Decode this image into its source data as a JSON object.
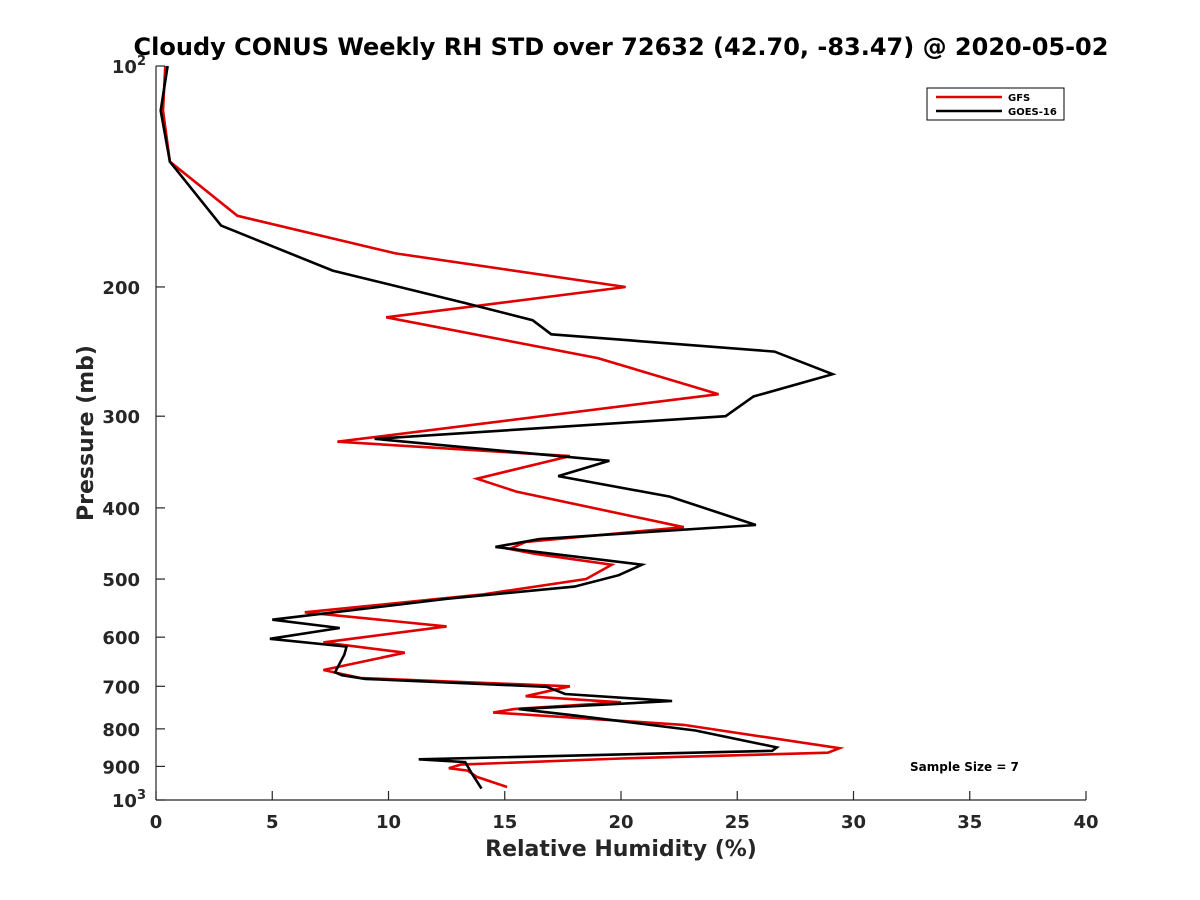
{
  "chart_data": {
    "type": "line",
    "title": "Cloudy CONUS Weekly RH STD over 72632 (42.70, -83.47) @ 2020-05-02",
    "xlabel": "Relative Humidity (%)",
    "ylabel": "Pressure (mb)",
    "xlim": [
      0,
      40
    ],
    "ylim": [
      100,
      1000
    ],
    "y_scale": "log",
    "y_reversed": true,
    "x_ticks": [
      "0",
      "5",
      "10",
      "15",
      "20",
      "25",
      "30",
      "35",
      "40"
    ],
    "y_ticks": [
      {
        "value": 100,
        "base": "10",
        "exp": "2",
        "label": ""
      },
      {
        "value": 200,
        "label": "200"
      },
      {
        "value": 300,
        "label": "300"
      },
      {
        "value": 400,
        "label": "400"
      },
      {
        "value": 500,
        "label": "500"
      },
      {
        "value": 600,
        "label": "600"
      },
      {
        "value": 700,
        "label": "700"
      },
      {
        "value": 800,
        "label": "800"
      },
      {
        "value": 900,
        "label": "900"
      },
      {
        "value": 1000,
        "base": "10",
        "exp": "3",
        "label": ""
      }
    ],
    "grid": false,
    "legend_position": "top-right",
    "annotation": "Sample Size = 7",
    "series": [
      {
        "name": "GFS",
        "color": "#e00000",
        "points": [
          [
            0.4,
            100
          ],
          [
            0.3,
            115
          ],
          [
            0.6,
            135
          ],
          [
            3.5,
            160
          ],
          [
            10.3,
            180
          ],
          [
            20.2,
            200
          ],
          [
            9.9,
            220
          ],
          [
            19.0,
            250
          ],
          [
            24.2,
            280
          ],
          [
            7.8,
            325
          ],
          [
            17.8,
            340
          ],
          [
            13.8,
            365
          ],
          [
            15.5,
            380
          ],
          [
            22.7,
            425
          ],
          [
            15.9,
            445
          ],
          [
            15.2,
            455
          ],
          [
            16.3,
            462
          ],
          [
            19.6,
            478
          ],
          [
            18.5,
            500
          ],
          [
            14.0,
            525
          ],
          [
            6.4,
            555
          ],
          [
            12.5,
            580
          ],
          [
            7.2,
            610
          ],
          [
            10.7,
            630
          ],
          [
            7.2,
            665
          ],
          [
            8.8,
            682
          ],
          [
            17.8,
            700
          ],
          [
            15.9,
            722
          ],
          [
            20.0,
            736
          ],
          [
            15.4,
            752
          ],
          [
            14.5,
            760
          ],
          [
            22.7,
            790
          ],
          [
            29.4,
            850
          ],
          [
            28.9,
            862
          ],
          [
            20.0,
            878
          ],
          [
            13.1,
            895
          ],
          [
            12.6,
            905
          ],
          [
            13.4,
            912
          ],
          [
            13.8,
            930
          ],
          [
            15.1,
            960
          ]
        ]
      },
      {
        "name": "GOES-16",
        "color": "#000000",
        "points": [
          [
            0.5,
            100
          ],
          [
            0.2,
            115
          ],
          [
            0.6,
            135
          ],
          [
            2.8,
            165
          ],
          [
            7.6,
            190
          ],
          [
            13.2,
            210
          ],
          [
            16.2,
            222
          ],
          [
            17.0,
            232
          ],
          [
            26.6,
            245
          ],
          [
            29.1,
            263
          ],
          [
            25.7,
            282
          ],
          [
            24.5,
            300
          ],
          [
            9.4,
            322
          ],
          [
            19.5,
            345
          ],
          [
            17.3,
            362
          ],
          [
            22.1,
            386
          ],
          [
            25.8,
            422
          ],
          [
            16.5,
            441
          ],
          [
            14.6,
            452
          ],
          [
            20.9,
            478
          ],
          [
            19.9,
            494
          ],
          [
            18.0,
            512
          ],
          [
            12.5,
            532
          ],
          [
            5.0,
            568
          ],
          [
            7.9,
            583
          ],
          [
            4.9,
            603
          ],
          [
            8.2,
            618
          ],
          [
            8.1,
            634
          ],
          [
            7.7,
            670
          ],
          [
            8.0,
            676
          ],
          [
            9.0,
            684
          ],
          [
            16.8,
            701
          ],
          [
            17.6,
            717
          ],
          [
            22.2,
            733
          ],
          [
            15.6,
            752
          ],
          [
            18.0,
            767
          ],
          [
            23.2,
            804
          ],
          [
            26.7,
            848
          ],
          [
            26.5,
            857
          ],
          [
            11.3,
            880
          ],
          [
            13.3,
            888
          ],
          [
            13.6,
            922
          ],
          [
            14.0,
            965
          ]
        ]
      }
    ]
  }
}
